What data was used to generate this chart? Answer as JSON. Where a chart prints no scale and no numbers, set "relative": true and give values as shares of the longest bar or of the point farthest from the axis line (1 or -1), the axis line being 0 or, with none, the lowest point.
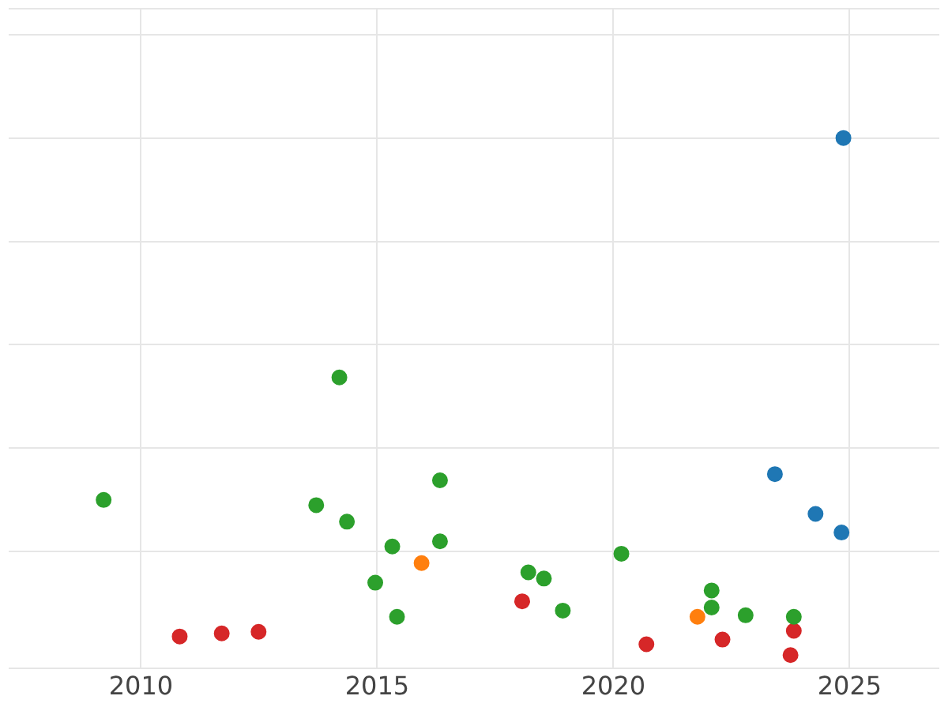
{
  "chart_data": {
    "type": "scatter",
    "relative": true,
    "xlim": [
      2007.2,
      2026.9
    ],
    "xticks": [
      2010,
      2015,
      2020,
      2025
    ],
    "grid": true,
    "legend": false,
    "marker": "circle",
    "series": [
      {
        "color": "#2ca02c",
        "x": [
          2009.21,
          2013.71,
          2014.2,
          2014.33,
          2014.36,
          2015.32,
          2014.96,
          2015.42,
          2016.33,
          2016.33,
          2018.2,
          2018.53,
          2018.93,
          2020.17,
          2022.08,
          2022.08,
          2022.8,
          2023.82
        ],
        "values": [
          0.3,
          0.29,
          0.537,
          null,
          0.258,
          0.21,
          0.14,
          0.074,
          0.338,
          0.22,
          0.16,
          0.148,
          0.086,
          0.196,
          0.125,
          0.092,
          0.077,
          0.074
        ]
      },
      {
        "color": "#ff7f0e",
        "x": [
          2015.94,
          2021.78
        ],
        "values": [
          0.178,
          0.074
        ]
      },
      {
        "color": "#d62728",
        "x": [
          2010.82,
          2011.71,
          2012.49,
          2018.07,
          2020.7,
          2022.31,
          2023.82,
          2023.75
        ],
        "values": [
          0.036,
          0.042,
          0.045,
          0.104,
          0.021,
          0.03,
          0.047,
          0
        ]
      },
      {
        "color": "#1f77b4",
        "x": [
          2024.87,
          2023.42,
          2024.28,
          2024.83
        ],
        "values": [
          1,
          0.35,
          0.273,
          0.237
        ]
      }
    ]
  }
}
